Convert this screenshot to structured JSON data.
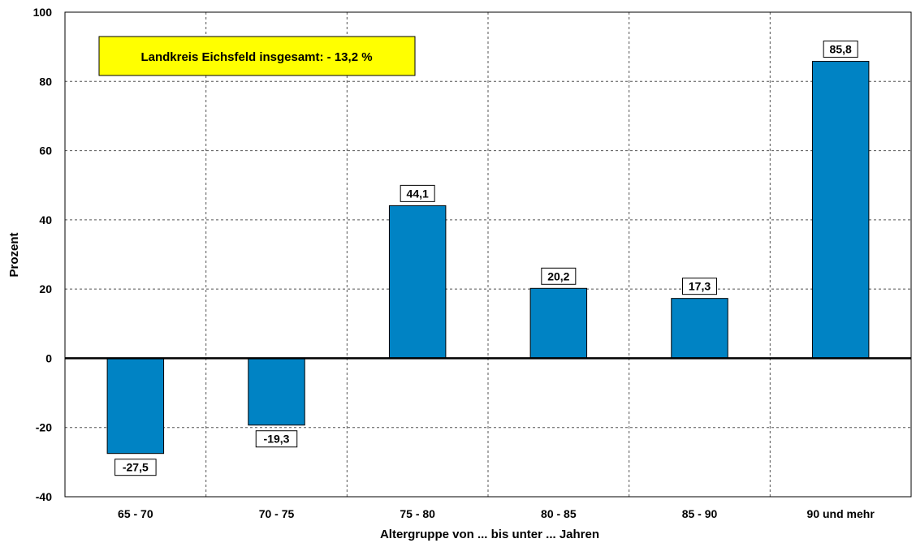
{
  "chart_data": {
    "type": "bar",
    "categories": [
      "65 - 70",
      "70 - 75",
      "75 - 80",
      "80 - 85",
      "85 - 90",
      "90 und mehr"
    ],
    "values": [
      -27.5,
      -19.3,
      44.1,
      20.2,
      17.3,
      85.8
    ],
    "value_labels": [
      "-27,5",
      "-19,3",
      "44,1",
      "20,2",
      "17,3",
      "85,8"
    ],
    "ylim": [
      -40,
      100
    ],
    "yticks": [
      -40,
      -20,
      0,
      20,
      40,
      60,
      80,
      100
    ],
    "xlabel": "Altergruppe von ... bis unter ... Jahren",
    "ylabel": "Prozent",
    "annotation": "Landkreis Eichsfeld insgesamt:  - 13,2 %",
    "grid": true,
    "bar_color": "#0083C4",
    "annotation_color": "#FFFF00"
  }
}
